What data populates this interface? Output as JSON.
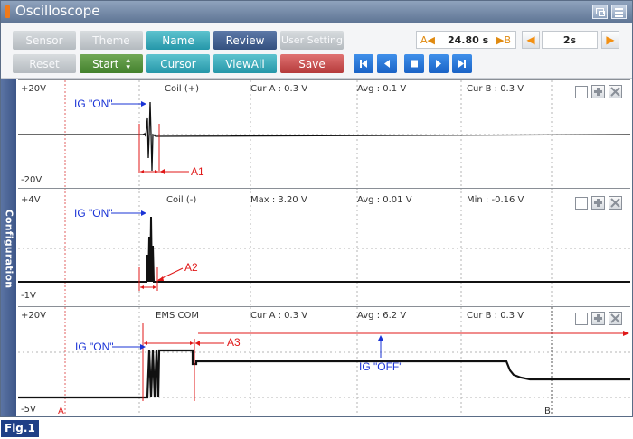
{
  "window": {
    "title": "Oscilloscope"
  },
  "toolbar": {
    "row1": [
      {
        "label": "Sensor",
        "style": "gray"
      },
      {
        "label": "Theme",
        "style": "gray"
      },
      {
        "label": "Name",
        "style": "teal"
      },
      {
        "label": "Review",
        "style": "navy"
      },
      {
        "label": "User Setting",
        "style": "gray"
      }
    ],
    "row2": [
      {
        "label": "Reset",
        "style": "gray"
      },
      {
        "label": "Start",
        "style": "green"
      },
      {
        "label": "Cursor",
        "style": "teal"
      },
      {
        "label": "ViewAll",
        "style": "teal"
      },
      {
        "label": "Save",
        "style": "red"
      }
    ],
    "time": {
      "marker_a": "A◀",
      "value": "24.80 s",
      "marker_b": "▶B"
    },
    "span": {
      "value": "2s"
    },
    "playback": [
      "first",
      "prev",
      "stop",
      "next",
      "last"
    ]
  },
  "sidebar": {
    "label": "Configuration"
  },
  "channels": [
    {
      "y_max": "+20V",
      "y_min": "-20V",
      "name": "Coil (+)",
      "stats": [
        "Cur A : 0.3 V",
        "Avg : 0.1 V",
        "Cur B : 0.3 V"
      ],
      "annotations": {
        "ig_on": "IG \"ON\"",
        "marker": "A1"
      }
    },
    {
      "y_max": "+4V",
      "y_min": "-1V",
      "name": "Coil (-)",
      "stats": [
        "Max : 3.20 V",
        "Avg : 0.01 V",
        "Min : -0.16 V"
      ],
      "annotations": {
        "ig_on": "IG \"ON\"",
        "marker": "A2"
      }
    },
    {
      "y_max": "+20V",
      "y_min": "-5V",
      "name": "EMS COM",
      "stats": [
        "Cur A : 0.3 V",
        "Avg : 6.2 V",
        "Cur B : 0.3 V"
      ],
      "annotations": {
        "ig_on": "IG \"ON\"",
        "marker": "A3",
        "ig_off": "IG \"OFF\""
      },
      "cursor_a": "A",
      "cursor_b": "B"
    }
  ],
  "colors": {
    "annotation_blue": "#1a33d6",
    "annotation_red": "#e01818",
    "trace": "#111111"
  },
  "figure_label": "Fig.1"
}
